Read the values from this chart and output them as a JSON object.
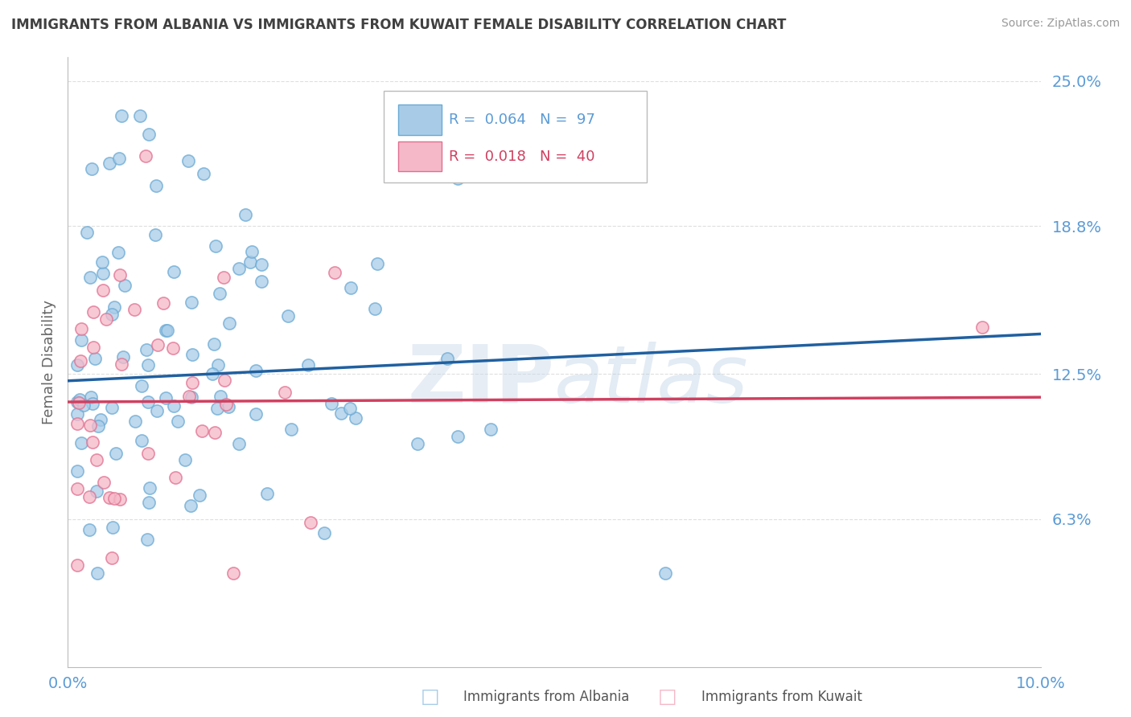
{
  "title": "IMMIGRANTS FROM ALBANIA VS IMMIGRANTS FROM KUWAIT FEMALE DISABILITY CORRELATION CHART",
  "source": "Source: ZipAtlas.com",
  "ylabel": "Female Disability",
  "ytick_vals": [
    0.063,
    0.125,
    0.188,
    0.25
  ],
  "ytick_labels": [
    "6.3%",
    "12.5%",
    "18.8%",
    "25.0%"
  ],
  "xlim": [
    0.0,
    0.1
  ],
  "ylim": [
    0.0,
    0.26
  ],
  "series": [
    {
      "name": "Immigrants from Albania",
      "R": 0.064,
      "N": 97,
      "color": "#a8cce8",
      "edge_color": "#6aaad4",
      "trend_color": "#2060a0",
      "trend_style": "-"
    },
    {
      "name": "Immigrants from Kuwait",
      "R": 0.018,
      "N": 40,
      "color": "#f5b8c8",
      "edge_color": "#e07090",
      "trend_color": "#d04060",
      "trend_style": "-"
    }
  ],
  "watermark": "ZIPatlas",
  "background_color": "#ffffff",
  "grid_color": "#d8d8d8",
  "title_color": "#404040",
  "tick_label_color": "#5b9bd5",
  "legend_R_color": "#5b9bd5",
  "legend_N_color": "#e05080"
}
